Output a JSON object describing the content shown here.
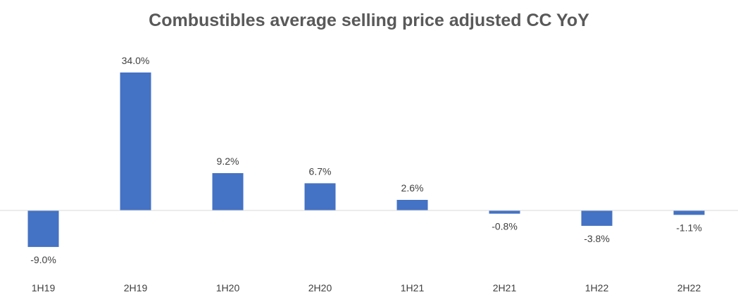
{
  "chart_data": {
    "type": "bar",
    "title": "Combustibles average selling price adjusted CC YoY",
    "categories": [
      "1H19",
      "2H19",
      "1H20",
      "2H20",
      "1H21",
      "2H21",
      "1H22",
      "2H22"
    ],
    "values": [
      -9.0,
      34.0,
      9.2,
      6.7,
      2.6,
      -0.8,
      -3.8,
      -1.1
    ],
    "data_labels": [
      "-9.0%",
      "34.0%",
      "9.2%",
      "6.7%",
      "2.6%",
      "-0.8%",
      "-3.8%",
      "-1.1%"
    ],
    "unit": "%",
    "bar_color": "#4472C4",
    "axis_color": "#D9D9D9",
    "grid": false,
    "legend": "none"
  }
}
